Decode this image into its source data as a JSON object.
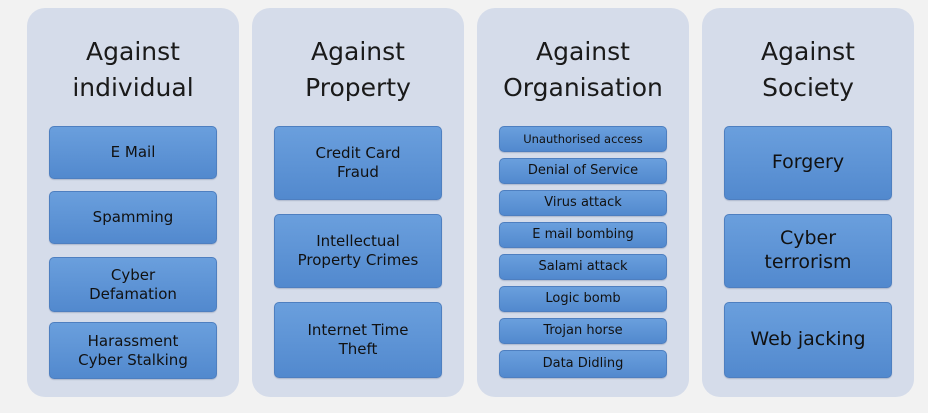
{
  "columns": [
    {
      "title": "Against\nindividual",
      "items": [
        "E Mail",
        "Spamming",
        "Cyber\nDefamation",
        "Harassment\nCyber Stalking"
      ]
    },
    {
      "title": "Against\nProperty",
      "items": [
        "Credit Card\nFraud",
        "Intellectual\nProperty Crimes",
        "Internet Time\nTheft"
      ]
    },
    {
      "title": "Against\nOrganisation",
      "items": [
        "Unauthorised access",
        "Denial of Service",
        "Virus attack",
        "E mail bombing",
        "Salami attack",
        "Logic bomb",
        "Trojan horse",
        "Data Didling"
      ]
    },
    {
      "title": "Against\nSociety",
      "items": [
        "Forgery",
        "Cyber\nterrorism",
        "Web jacking"
      ]
    }
  ],
  "colors": {
    "background": "#f2f2f2",
    "panel": "#d5dcea",
    "box": "#5b92d3"
  }
}
